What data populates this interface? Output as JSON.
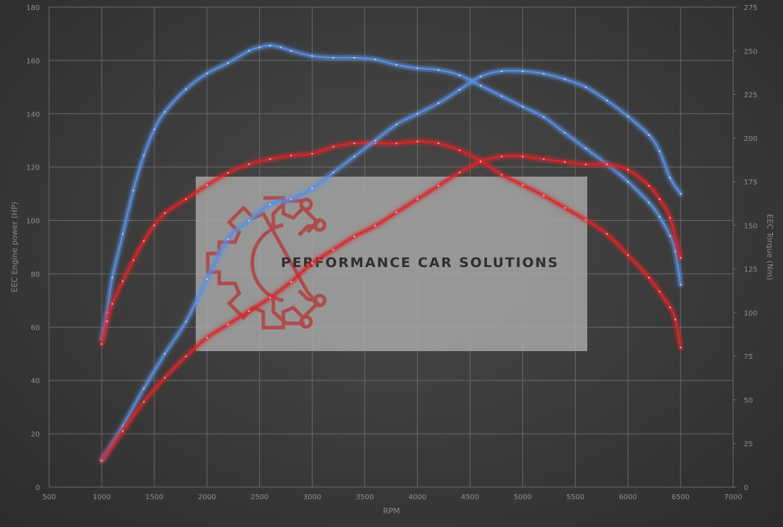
{
  "chart_data": {
    "type": "line",
    "title": "",
    "xlabel": "RPM",
    "ylabel_left": "EEC Engine power (HP)",
    "ylabel_right": "EEC Torque (Nm)",
    "xlim": [
      500,
      7000
    ],
    "ylim_left": [
      0,
      180
    ],
    "ylim_right": [
      0,
      275
    ],
    "x_ticks": [
      "500",
      "1000",
      "1500",
      "2000",
      "2500",
      "3000",
      "3500",
      "4000",
      "4500",
      "5000",
      "5500",
      "6000",
      "6500",
      "7000"
    ],
    "y_left_ticks": [
      "0",
      "20",
      "40",
      "60",
      "80",
      "100",
      "120",
      "140",
      "160",
      "180"
    ],
    "y_right_ticks": [
      "0",
      "25",
      "50",
      "75",
      "100",
      "125",
      "150",
      "175",
      "200",
      "225",
      "250",
      "275"
    ],
    "grid": true,
    "series": [
      {
        "name": "",
        "kind": "torque",
        "axis": "right",
        "color": "#5a8fe0",
        "x": [
          1000,
          1050,
          1100,
          1200,
          1300,
          1400,
          1500,
          1600,
          1800,
          2000,
          2200,
          2400,
          2500,
          2600,
          2700,
          2800,
          3000,
          3200,
          3400,
          3600,
          3800,
          4000,
          4200,
          4400,
          4600,
          4800,
          5000,
          5200,
          5400,
          5600,
          5800,
          6000,
          6200,
          6300,
          6400,
          6450,
          6500
        ],
        "values": [
          85,
          100,
          120,
          145,
          170,
          190,
          205,
          215,
          228,
          237,
          243,
          250,
          252,
          253,
          252,
          250,
          247,
          246,
          246,
          245,
          242,
          240,
          239,
          236,
          230,
          224,
          218,
          212,
          203,
          194,
          185,
          175,
          163,
          155,
          144,
          135,
          116
        ]
      },
      {
        "name": "",
        "kind": "torque",
        "axis": "right",
        "color": "#d8262a",
        "x": [
          1000,
          1050,
          1100,
          1200,
          1300,
          1400,
          1500,
          1600,
          1800,
          2000,
          2200,
          2400,
          2600,
          2800,
          3000,
          3200,
          3400,
          3600,
          3800,
          4000,
          4200,
          4400,
          4600,
          4800,
          5000,
          5200,
          5400,
          5600,
          5800,
          6000,
          6200,
          6300,
          6400,
          6450,
          6500
        ],
        "values": [
          82,
          95,
          105,
          118,
          130,
          141,
          150,
          157,
          165,
          173,
          180,
          185,
          188,
          190,
          191,
          195,
          197,
          197,
          197,
          198,
          197,
          193,
          187,
          179,
          173,
          167,
          160,
          153,
          145,
          133,
          120,
          112,
          103,
          96,
          80
        ]
      },
      {
        "name": "",
        "kind": "power",
        "axis": "left",
        "color": "#5a8fe0",
        "x": [
          1000,
          1200,
          1400,
          1600,
          1800,
          2000,
          2200,
          2400,
          2600,
          2800,
          3000,
          3200,
          3400,
          3600,
          3800,
          4000,
          4200,
          4400,
          4600,
          4800,
          5000,
          5200,
          5400,
          5600,
          5800,
          6000,
          6200,
          6300,
          6400,
          6500
        ],
        "values": [
          10,
          23,
          37,
          50,
          62,
          78,
          93,
          100,
          106,
          108,
          112,
          118,
          124,
          130,
          136,
          140,
          144,
          149,
          154,
          156,
          156,
          155,
          153,
          150,
          145,
          139,
          132,
          126,
          116,
          110
        ]
      },
      {
        "name": "",
        "kind": "power",
        "axis": "left",
        "color": "#d8262a",
        "x": [
          1000,
          1200,
          1400,
          1600,
          1800,
          2000,
          2200,
          2400,
          2600,
          2800,
          3000,
          3200,
          3400,
          3600,
          3800,
          4000,
          4200,
          4400,
          4600,
          4800,
          5000,
          5200,
          5400,
          5600,
          5800,
          6000,
          6200,
          6300,
          6400,
          6500
        ],
        "values": [
          10,
          21,
          32,
          41,
          49,
          56,
          61,
          66,
          71,
          77,
          84,
          89,
          94,
          98,
          103,
          108,
          113,
          118,
          122,
          124,
          124,
          123,
          122,
          121,
          121,
          119,
          113,
          108,
          101,
          86
        ]
      }
    ]
  },
  "watermark": {
    "text": "PERFORMANCE CAR SOLUTIONS",
    "logo_icon": "gear-circuit-icon",
    "logo_color": "#b3403f"
  }
}
